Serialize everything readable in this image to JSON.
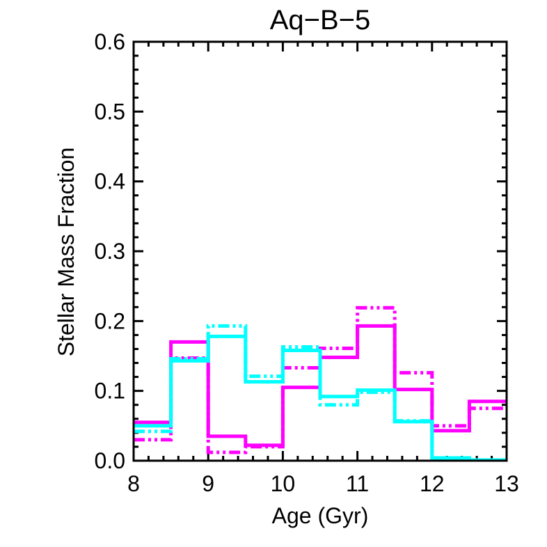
{
  "chart_data": {
    "type": "line",
    "style": "step-histogram",
    "title": "Aq−B−5",
    "xlabel": "Age (Gyr)",
    "ylabel": "Stellar Mass Fraction",
    "xlim": [
      8,
      13
    ],
    "ylim": [
      0.0,
      0.6
    ],
    "x_ticks": [
      8,
      9,
      10,
      11,
      12,
      13
    ],
    "y_ticks": [
      0.0,
      0.1,
      0.2,
      0.3,
      0.4,
      0.5,
      0.6
    ],
    "y_tick_labels": [
      "0.0",
      "0.1",
      "0.2",
      "0.3",
      "0.4",
      "0.5",
      "0.6"
    ],
    "bin_edges": [
      8.0,
      8.5,
      9.0,
      9.5,
      10.0,
      10.5,
      11.0,
      11.5,
      12.0,
      12.5,
      13.0
    ],
    "series": [
      {
        "name": "magenta-solid",
        "color": "#ff00ff",
        "dash": "solid",
        "values": [
          0.055,
          0.17,
          0.035,
          0.022,
          0.105,
          0.148,
          0.193,
          0.102,
          0.043,
          0.085
        ]
      },
      {
        "name": "magenta-dashdot",
        "color": "#ff00ff",
        "dash": "dashdot",
        "values": [
          0.03,
          0.147,
          0.012,
          0.02,
          0.133,
          0.161,
          0.219,
          0.126,
          0.05,
          0.075
        ]
      },
      {
        "name": "cyan-solid",
        "color": "#00ffff",
        "dash": "solid",
        "values": [
          0.05,
          0.143,
          0.178,
          0.113,
          0.158,
          0.092,
          0.101,
          0.056,
          0.004,
          0.001
        ]
      },
      {
        "name": "cyan-dashdot",
        "color": "#00ffff",
        "dash": "dashdot",
        "values": [
          0.042,
          0.146,
          0.193,
          0.121,
          0.163,
          0.08,
          0.098,
          0.057,
          0.004,
          0.001
        ]
      }
    ]
  }
}
